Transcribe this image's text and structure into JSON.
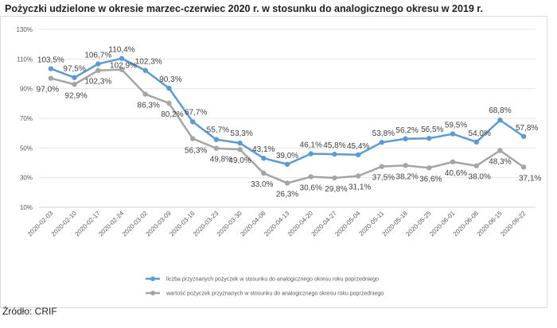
{
  "title": "Pożyczki udzielone w okresie marzec-czerwiec 2020 r. w stosunku do analogicznego okresu w 2019 r.",
  "source": "Źródło: CRIF",
  "chart_data": {
    "type": "line",
    "title": "Pożyczki udzielone w okresie marzec-czerwiec 2020 r. w stosunku do analogicznego okresu w 2019 r.",
    "xlabel": "",
    "ylabel": "",
    "ylim": [
      10,
      130
    ],
    "yticks": [
      10,
      30,
      50,
      70,
      90,
      110,
      130
    ],
    "ytick_labels": [
      "10%",
      "30%",
      "50%",
      "70%",
      "90%",
      "110%",
      "130%"
    ],
    "grid": true,
    "legend_position": "bottom",
    "categories": [
      "2020-02-03",
      "2020-02-10",
      "2020-02-17",
      "2020-02-24",
      "2020-03-02",
      "2020-03-09",
      "2020-03-16",
      "2020-03-23",
      "2020-03-30",
      "2020-04-06",
      "2020-04-13",
      "2020-04-20",
      "2020-04-27",
      "2020-05-04",
      "2020-05-11",
      "2020-05-18",
      "2020-05-25",
      "2020-06-01",
      "2020-06-08",
      "2020-06-15",
      "2020-06-22"
    ],
    "series": [
      {
        "name": "liczba przyznanych pożyczek w stosunku do analogicznego okresu roku poprzedniego",
        "color": "#5b9bd5",
        "values": [
          103.5,
          97.5,
          106.7,
          110.4,
          102.3,
          90.3,
          67.7,
          55.7,
          53.3,
          43.1,
          39.0,
          46.1,
          45.8,
          45.4,
          53.8,
          56.2,
          56.5,
          59.5,
          54.0,
          68.8,
          57.8
        ],
        "labels": [
          "103,5%",
          "97,5%",
          "106,7%",
          "110,4%",
          "102,3%",
          "90,3%",
          "67,7%",
          "55,7%",
          "53,3%",
          "43,1%",
          "39,0%",
          "46,1%",
          "45,8%",
          "45,4%",
          "53,8%",
          "56,2%",
          "56,5%",
          "59,5%",
          "54,0%",
          "68,8%",
          "57,8%"
        ]
      },
      {
        "name": "wartość pożyczek przyznanych w stosunku do analogicznego okresu roku poprzedniego",
        "color": "#a5a5a5",
        "values": [
          97.0,
          92.9,
          102.3,
          102.9,
          86.3,
          80.2,
          56.3,
          49.8,
          49.0,
          33.0,
          26.3,
          30.6,
          29.8,
          31.1,
          37.5,
          38.2,
          36.6,
          40.6,
          38.0,
          48.3,
          37.1
        ],
        "labels": [
          "97,0%",
          "92,9%",
          "102,3%",
          "102,9%",
          "86,3%",
          "80,2%",
          "56,3%",
          "49,8%",
          "49,0%",
          "33,0%",
          "26,3%",
          "30,6%",
          "29,8%",
          "31,1%",
          "37,5%",
          "38,2%",
          "36,6%",
          "40,6%",
          "38,0%",
          "48,3%",
          "37,1%"
        ]
      }
    ]
  }
}
